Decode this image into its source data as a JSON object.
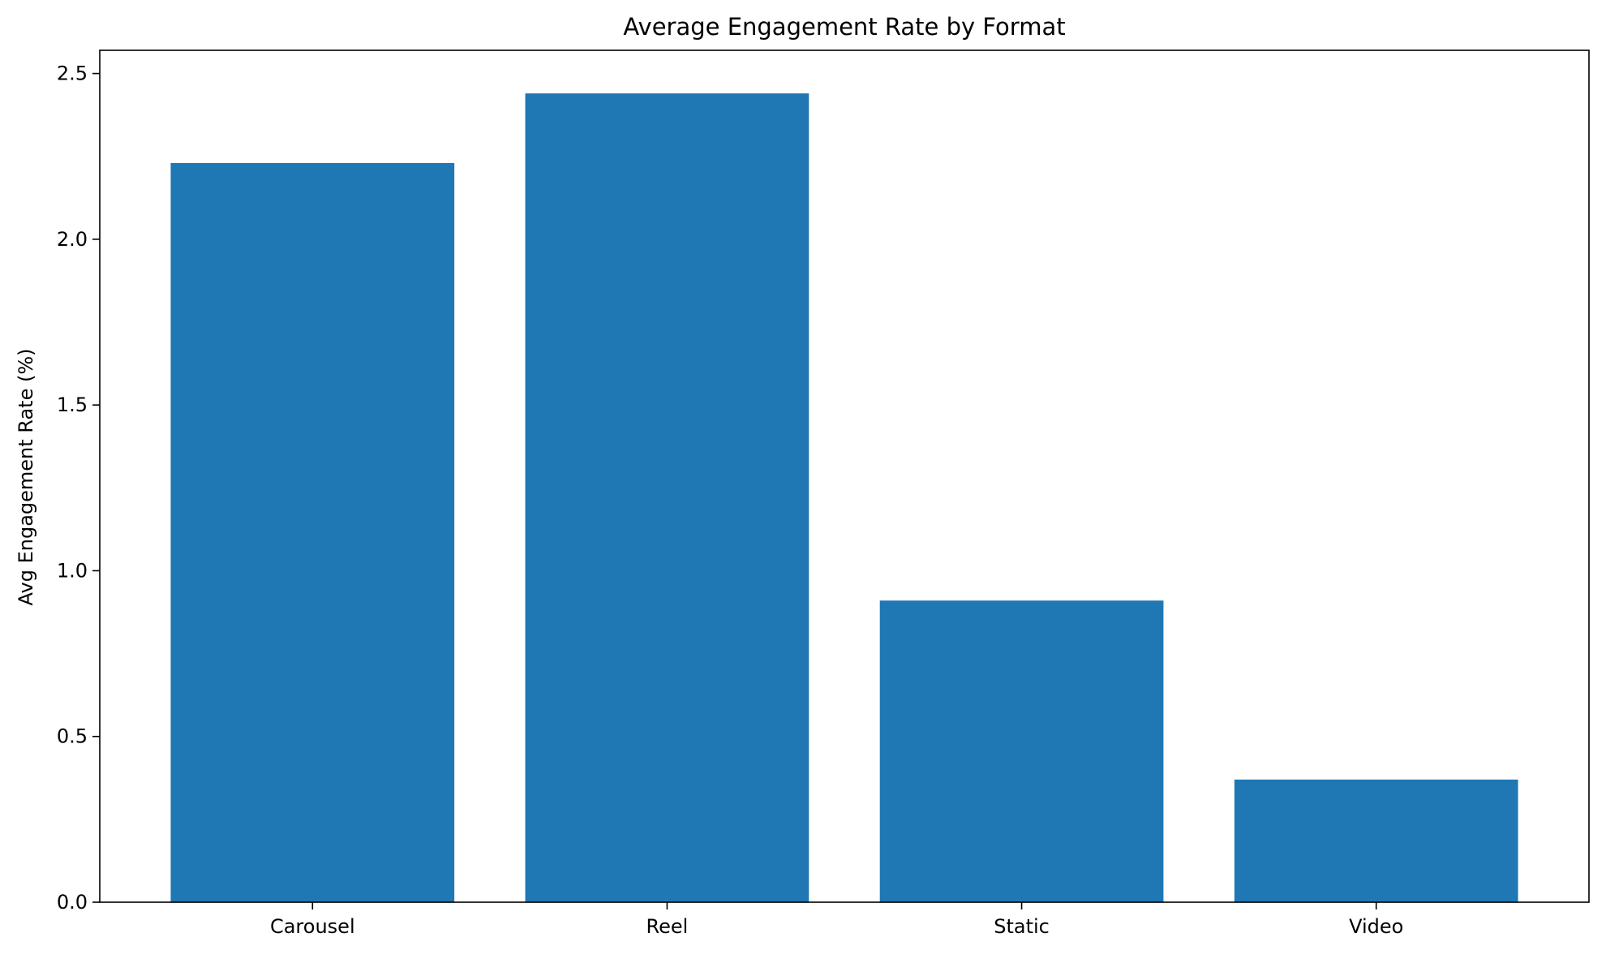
{
  "chart_data": {
    "type": "bar",
    "title": "Average Engagement Rate by Format",
    "xlabel": "",
    "ylabel": "Avg Engagement Rate (%)",
    "categories": [
      "Carousel",
      "Reel",
      "Static",
      "Video"
    ],
    "values": [
      2.23,
      2.44,
      0.91,
      0.37
    ],
    "ylim": [
      0,
      2.57
    ],
    "yticks": [
      0.0,
      0.5,
      1.0,
      1.5,
      2.0,
      2.5
    ],
    "ytick_labels": [
      "0.0",
      "0.5",
      "1.0",
      "1.5",
      "2.0",
      "2.5"
    ],
    "grid": false,
    "legend": "none",
    "bar_color": "#1f77b4"
  }
}
